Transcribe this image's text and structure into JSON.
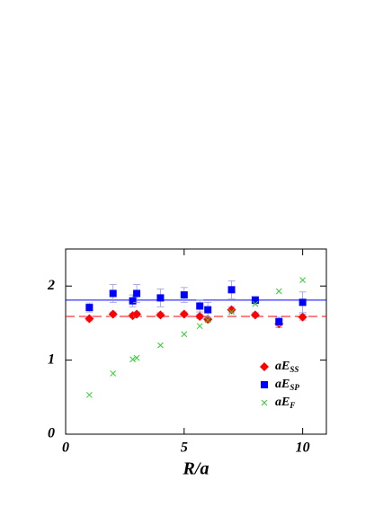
{
  "chart_data": {
    "type": "scatter",
    "x_label": "R/a",
    "xlim": [
      0,
      11
    ],
    "xticks": [
      0,
      5,
      10
    ],
    "ylim": [
      0,
      2.5
    ],
    "yticks": [
      0,
      1,
      2
    ],
    "x": [
      1,
      2,
      2.83,
      3,
      4,
      5,
      5.66,
      6,
      7,
      8,
      9,
      10
    ],
    "series": [
      {
        "name": "aE",
        "name_sub": "SS",
        "color": "#ff0000",
        "marker": "diamond",
        "values": [
          1.56,
          1.62,
          1.6,
          1.62,
          1.61,
          1.62,
          1.59,
          1.55,
          1.68,
          1.61,
          1.49,
          1.58
        ],
        "errors": [
          0.03,
          0.03,
          0.03,
          0.03,
          0.03,
          0.03,
          0.03,
          0.03,
          0.04,
          0.03,
          0.05,
          0.04
        ]
      },
      {
        "name": "aE",
        "name_sub": "SP",
        "color": "#0000ff",
        "marker": "square",
        "values": [
          1.71,
          1.9,
          1.8,
          1.9,
          1.84,
          1.88,
          1.73,
          1.68,
          1.95,
          1.81,
          1.52,
          1.78
        ],
        "errors": [
          0.06,
          0.12,
          0.08,
          0.12,
          0.12,
          0.1,
          0.08,
          0.1,
          0.12,
          0.05,
          0.06,
          0.14
        ]
      },
      {
        "name": "aE",
        "name_sub": "F",
        "color": "#33cc33",
        "marker": "cross",
        "values": [
          0.53,
          0.82,
          1.01,
          1.03,
          1.2,
          1.35,
          1.46,
          1.54,
          1.65,
          1.76,
          1.93,
          2.08
        ]
      }
    ],
    "lines": [
      {
        "y": 1.81,
        "color": "#0000ff",
        "dashed": false
      },
      {
        "y": 1.59,
        "color": "#ff0000",
        "dashed": true
      }
    ]
  }
}
